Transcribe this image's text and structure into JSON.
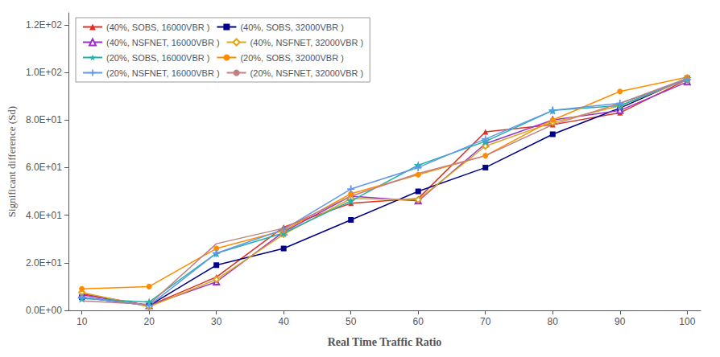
{
  "chart_data": {
    "type": "line",
    "xlabel": "Real Time Traffic Ratio",
    "ylabel": "Significant difference (Sd)",
    "x": [
      10,
      20,
      30,
      40,
      50,
      60,
      70,
      80,
      90,
      100
    ],
    "xlim": [
      8,
      102
    ],
    "xticks": [
      10,
      20,
      30,
      40,
      50,
      60,
      70,
      80,
      90,
      100
    ],
    "ylim": [
      0,
      125
    ],
    "yticks": [
      {
        "value": 0,
        "label": "0.0E+00"
      },
      {
        "value": 20,
        "label": "2.0E+01"
      },
      {
        "value": 40,
        "label": "4.0E+01"
      },
      {
        "value": 60,
        "label": "6.0E+01"
      },
      {
        "value": 80,
        "label": "8.0E+01"
      },
      {
        "value": 100,
        "label": "1.0E+02"
      },
      {
        "value": 120,
        "label": "1.2E+02"
      }
    ],
    "grid": false,
    "legend": "upper left",
    "series": [
      {
        "name": "(40%, SOBS, 16000VBR )",
        "color": "#e03020",
        "marker": "triangle",
        "values": [
          7.0,
          2.0,
          14.0,
          35.0,
          45.0,
          47.0,
          75.0,
          78.0,
          83.0,
          97.0
        ]
      },
      {
        "name": "(40%, SOBS, 32000VBR )",
        "color": "#00008b",
        "marker": "square",
        "values": [
          5.5,
          2.0,
          19.0,
          26.0,
          38.0,
          50.0,
          60.0,
          74.0,
          85.0,
          97.5
        ]
      },
      {
        "name": "(40%, NSFNET, 16000VBR )",
        "color": "#9932cc",
        "marker": "triangle-open",
        "values": [
          6.5,
          2.0,
          12.0,
          33.0,
          48.0,
          46.0,
          70.0,
          80.0,
          84.0,
          96.0
        ]
      },
      {
        "name": "(40%, NSFNET, 32000VBR )",
        "color": "#daa520",
        "marker": "diamond-open",
        "values": [
          7.5,
          1.5,
          13.0,
          32.0,
          47.0,
          46.5,
          69.0,
          79.0,
          86.0,
          97.0
        ]
      },
      {
        "name": "(20%, SOBS, 16000VBR )",
        "color": "#20b2aa",
        "marker": "star",
        "values": [
          5.0,
          3.5,
          24.0,
          32.5,
          46.0,
          61.0,
          71.0,
          84.0,
          86.0,
          97.5
        ]
      },
      {
        "name": "(20%, SOBS, 32000VBR )",
        "color": "#ff8c00",
        "marker": "circle",
        "values": [
          9.0,
          10.0,
          26.0,
          33.5,
          49.0,
          57.0,
          65.0,
          80.0,
          92.0,
          98.0
        ]
      },
      {
        "name": "(20%, NSFNET, 16000VBR )",
        "color": "#6495ed",
        "marker": "plus",
        "values": [
          5.5,
          2.0,
          24.0,
          34.0,
          51.0,
          60.0,
          72.0,
          84.0,
          87.0,
          97.0
        ]
      },
      {
        "name": "(20%, NSFNET, 32000VBR )",
        "color": "#c08080",
        "marker": "none",
        "values": [
          4.0,
          2.5,
          28.0,
          34.5,
          48.0,
          57.5,
          65.0,
          78.0,
          87.0,
          97.5
        ]
      }
    ]
  }
}
